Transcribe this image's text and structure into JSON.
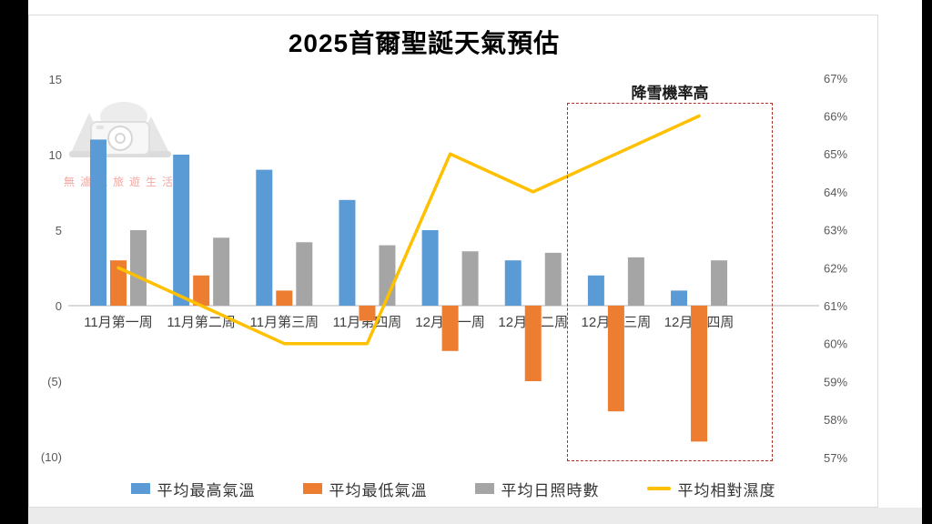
{
  "title": "2025首爾聖誕天氣預估",
  "watermark": {
    "text": "無濾鏡旅遊生活",
    "icon": "camera-mountain-logo"
  },
  "annotation": {
    "label": "降雪機率高",
    "box_color": "#a83226"
  },
  "colors": {
    "max_temp": "#5B9BD5",
    "min_temp": "#ED7D31",
    "sunshine": "#A5A5A5",
    "humidity": "#FFC000",
    "axis_line": "#c3c3c3",
    "tick_text": "#595959",
    "category_text": "#3f3f3f"
  },
  "chart_data": {
    "type": "bar",
    "subtype": "grouped-bars-with-line",
    "title": "2025首爾聖誕天氣預估",
    "categories": [
      "11月第一周",
      "11月第二周",
      "11月第三周",
      "11月第四周",
      "12月第一周",
      "12月第二周",
      "12月第三周",
      "12月第四周"
    ],
    "series": [
      {
        "name": "平均最高氣溫",
        "type": "bar",
        "axis": "left",
        "color": "#5B9BD5",
        "values": [
          11,
          10,
          9,
          7,
          5,
          3,
          2,
          1
        ]
      },
      {
        "name": "平均最低氣溫",
        "type": "bar",
        "axis": "left",
        "color": "#ED7D31",
        "values": [
          3,
          2,
          1,
          -1,
          -3,
          -5,
          -7,
          -9
        ]
      },
      {
        "name": "平均日照時數",
        "type": "bar",
        "axis": "left",
        "color": "#A5A5A5",
        "values": [
          5,
          4.5,
          4.2,
          4,
          3.6,
          3.5,
          3.2,
          3
        ]
      },
      {
        "name": "平均相對濕度",
        "type": "line",
        "axis": "right",
        "color": "#FFC000",
        "values": [
          62,
          61,
          60,
          60,
          65,
          64,
          65,
          66
        ]
      }
    ],
    "left_axis": {
      "range": [
        -10,
        15
      ],
      "ticks": [
        {
          "label": "15",
          "value": 15
        },
        {
          "label": "10",
          "value": 10
        },
        {
          "label": "5",
          "value": 5
        },
        {
          "label": "0",
          "value": 0
        },
        {
          "label": "(5)",
          "value": -5
        },
        {
          "label": "(10)",
          "value": -10
        }
      ]
    },
    "right_axis": {
      "range": [
        57,
        67
      ],
      "ticks": [
        {
          "label": "67%",
          "value": 67
        },
        {
          "label": "66%",
          "value": 66
        },
        {
          "label": "65%",
          "value": 65
        },
        {
          "label": "64%",
          "value": 64
        },
        {
          "label": "63%",
          "value": 63
        },
        {
          "label": "62%",
          "value": 62
        },
        {
          "label": "61%",
          "value": 61
        },
        {
          "label": "60%",
          "value": 60
        },
        {
          "label": "59%",
          "value": 59
        },
        {
          "label": "58%",
          "value": 58
        },
        {
          "label": "57%",
          "value": 57
        }
      ]
    },
    "grid": "off",
    "legend_position": "bottom",
    "highlight": {
      "label": "降雪機率高",
      "categories": [
        "12月第三周",
        "12月第四周"
      ]
    }
  },
  "legend": {
    "items": [
      {
        "label": "平均最高氣溫",
        "swatch": "bar",
        "color": "#5B9BD5"
      },
      {
        "label": "平均最低氣溫",
        "swatch": "bar",
        "color": "#ED7D31"
      },
      {
        "label": "平均日照時數",
        "swatch": "bar",
        "color": "#A5A5A5"
      },
      {
        "label": "平均相對濕度",
        "swatch": "line",
        "color": "#FFC000"
      }
    ]
  }
}
